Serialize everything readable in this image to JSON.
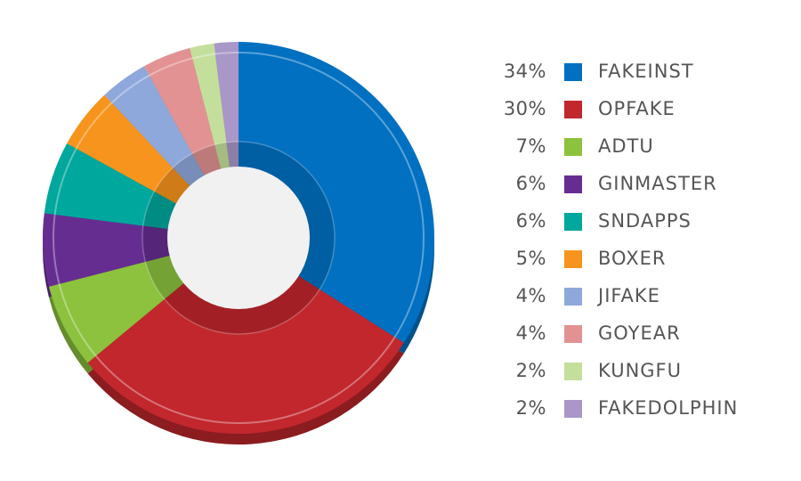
{
  "chart_data": {
    "type": "pie",
    "variant": "donut",
    "slices": [
      {
        "label": "FAKEINST",
        "value": 34,
        "value_label": "34%",
        "color": "#0170c1"
      },
      {
        "label": "OPFAKE",
        "value": 30,
        "value_label": "30%",
        "color": "#c1272d"
      },
      {
        "label": "ADTU",
        "value": 7,
        "value_label": "7%",
        "color": "#8cc23e"
      },
      {
        "label": "GINMASTER",
        "value": 6,
        "value_label": "6%",
        "color": "#662d91"
      },
      {
        "label": "SNDAPPS",
        "value": 6,
        "value_label": "6%",
        "color": "#00a79d"
      },
      {
        "label": "BOXER",
        "value": 5,
        "value_label": "5%",
        "color": "#f7941d"
      },
      {
        "label": "JIFAKE",
        "value": 4,
        "value_label": "4%",
        "color": "#8fa8db"
      },
      {
        "label": "GOYEAR",
        "value": 4,
        "value_label": "4%",
        "color": "#e29292"
      },
      {
        "label": "KUNGFU",
        "value": 2,
        "value_label": "2%",
        "color": "#c4df9b"
      },
      {
        "label": "FAKEDOLPHIN",
        "value": 2,
        "value_label": "2%",
        "color": "#a997c9"
      }
    ],
    "start_angle": "12 o'clock",
    "direction": "clockwise",
    "legend_position": "right",
    "hole_color": "#f1f1f2"
  }
}
